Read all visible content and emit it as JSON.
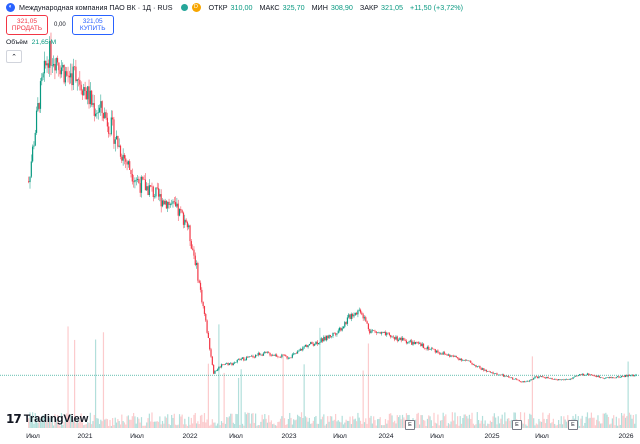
{
  "header": {
    "symbol_icon": "vk-logo-icon",
    "title": "Международная компания ПАО ВК · 1Д · RUS",
    "market_status": "D",
    "ohlc": [
      {
        "label": "ОТКР",
        "value": "310,00"
      },
      {
        "label": "МАКС",
        "value": "325,70"
      },
      {
        "label": "МИН",
        "value": "308,90"
      },
      {
        "label": "ЗАКР",
        "value": "321,05"
      }
    ],
    "change": "+11,50 (+3,72%)"
  },
  "trade": {
    "sell_price": "321,05",
    "sell_label": "ПРОДАТЬ",
    "spread": "0,00",
    "buy_price": "321,05",
    "buy_label": "КУПИТЬ"
  },
  "volume": {
    "label": "Объём",
    "value": "21,65 M"
  },
  "collapse_icon": "chevron-up-icon",
  "logo": {
    "text": "TradingView",
    "icon": "tradingview-logo-icon"
  },
  "x_axis_labels": [
    "Июл",
    "2021",
    "Июл",
    "2022",
    "Июл",
    "2023",
    "Июл",
    "2024",
    "Июл",
    "2025",
    "Июл",
    "2026"
  ],
  "earnings_markers": [
    "E",
    "E",
    "E"
  ],
  "colors": {
    "up": "#089981",
    "down": "#f23645",
    "price_line": "#089981",
    "volume_up": "#b2dfdb",
    "volume_down": "#fccbcd",
    "accent": "#2962ff"
  },
  "chart_data": {
    "type": "candlestick",
    "x_range": [
      "2020-06",
      "2026-01"
    ],
    "series": [
      {
        "dates": [
          "2020-07",
          "2020-08",
          "2020-09",
          "2020-10",
          "2020-11",
          "2020-12",
          "2021-01",
          "2021-02",
          "2021-03",
          "2021-04",
          "2021-05",
          "2021-06",
          "2021-07",
          "2021-08",
          "2021-09",
          "2021-10",
          "2021-11",
          "2021-12",
          "2022-01",
          "2022-02",
          "2022-03",
          "2022-04",
          "2022-05",
          "2022-06",
          "2022-07",
          "2022-08",
          "2022-09",
          "2022-10",
          "2022-11",
          "2022-12",
          "2023-01",
          "2023-02",
          "2023-03",
          "2023-04",
          "2023-05",
          "2023-06",
          "2023-07",
          "2023-08",
          "2023-09",
          "2023-10",
          "2023-11",
          "2023-12",
          "2024-01",
          "2024-02",
          "2024-03",
          "2024-04",
          "2024-05",
          "2024-06",
          "2024-07",
          "2024-08",
          "2024-09",
          "2024-10",
          "2024-11",
          "2024-12",
          "2025-01",
          "2025-02",
          "2025-03",
          "2025-04",
          "2025-05",
          "2025-06",
          "2025-07",
          "2025-08",
          "2025-09",
          "2025-10",
          "2025-11",
          "2025-12",
          "2026-01"
        ],
        "close": [
          2600,
          3400,
          3900,
          3850,
          3650,
          3700,
          3500,
          3300,
          3250,
          3050,
          2800,
          2600,
          2450,
          2400,
          2300,
          2250,
          2150,
          2050,
          1600,
          1000,
          350,
          450,
          450,
          500,
          520,
          560,
          560,
          540,
          520,
          560,
          650,
          680,
          720,
          780,
          860,
          1000,
          1050,
          820,
          790,
          760,
          730,
          700,
          670,
          640,
          600,
          560,
          530,
          500,
          460,
          400,
          350,
          330,
          300,
          270,
          240,
          300,
          300,
          270,
          270,
          280,
          330,
          330,
          300,
          290,
          300,
          315,
          321
        ]
      }
    ],
    "last_price": "321,05"
  }
}
